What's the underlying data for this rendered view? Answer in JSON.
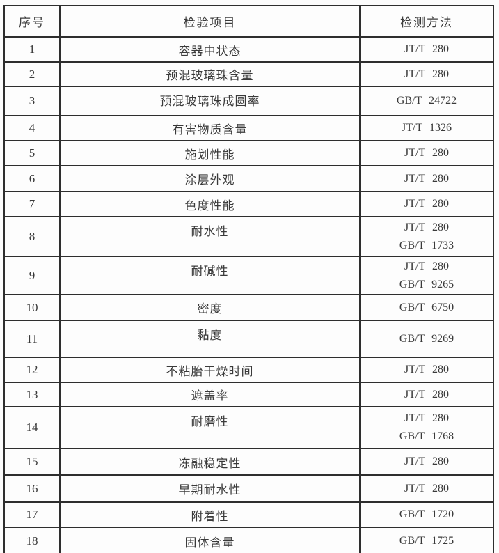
{
  "table": {
    "headers": [
      "序号",
      "检验项目",
      "检测方法"
    ],
    "rows": [
      {
        "no": "1",
        "item": "容器中状态",
        "methods": [
          "JT/T 280"
        ]
      },
      {
        "no": "2",
        "item": "预混玻璃珠含量",
        "methods": [
          "JT/T 280"
        ]
      },
      {
        "no": "3",
        "item": "预混玻璃珠成圆率",
        "methods": [
          "GB/T 24722"
        ]
      },
      {
        "no": "4",
        "item": "有害物质含量",
        "methods": [
          "JT/T 1326"
        ]
      },
      {
        "no": "5",
        "item": "施划性能",
        "methods": [
          "JT/T 280"
        ]
      },
      {
        "no": "6",
        "item": "涂层外观",
        "methods": [
          "JT/T 280"
        ]
      },
      {
        "no": "7",
        "item": "色度性能",
        "methods": [
          "JT/T 280"
        ]
      },
      {
        "no": "8",
        "item": "耐水性",
        "methods": [
          "JT/T 280",
          "GB/T 1733"
        ]
      },
      {
        "no": "9",
        "item": "耐碱性",
        "methods": [
          "JT/T 280",
          "GB/T 9265"
        ]
      },
      {
        "no": "10",
        "item": "密度",
        "methods": [
          "GB/T 6750"
        ]
      },
      {
        "no": "11",
        "item": "黏度",
        "methods": [
          "GB/T 9269"
        ]
      },
      {
        "no": "12",
        "item": "不粘胎干燥时间",
        "methods": [
          "JT/T 280"
        ]
      },
      {
        "no": "13",
        "item": "遮盖率",
        "methods": [
          "JT/T 280"
        ]
      },
      {
        "no": "14",
        "item": "耐磨性",
        "methods": [
          "JT/T 280",
          "GB/T 1768"
        ]
      },
      {
        "no": "15",
        "item": "冻融稳定性",
        "methods": [
          "JT/T 280"
        ]
      },
      {
        "no": "16",
        "item": "早期耐水性",
        "methods": [
          "JT/T 280"
        ]
      },
      {
        "no": "17",
        "item": "附着性",
        "methods": [
          "GB/T 1720"
        ]
      },
      {
        "no": "18",
        "item": "固体含量",
        "methods": [
          "GB/T 1725"
        ]
      }
    ],
    "colors": {
      "border": "#2e2e2e",
      "text": "#3a3a3a",
      "background": "#fdfdfd"
    }
  }
}
